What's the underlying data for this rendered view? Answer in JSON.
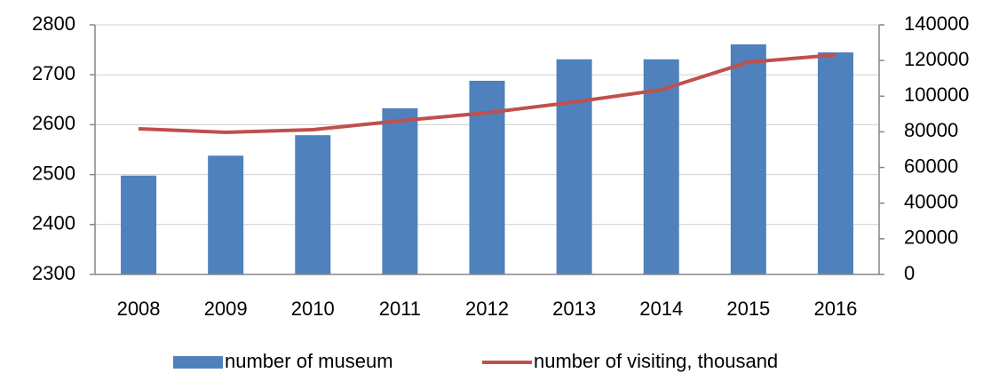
{
  "chart_data": {
    "type": "combo",
    "categories": [
      "2008",
      "2009",
      "2010",
      "2011",
      "2012",
      "2013",
      "2014",
      "2015",
      "2016"
    ],
    "series": [
      {
        "name": "number of museum",
        "type": "bar",
        "axis": "y",
        "color": "#4f81bd",
        "values": [
          2498,
          2538,
          2579,
          2633,
          2688,
          2731,
          2731,
          2761,
          2745
        ]
      },
      {
        "name": "number of visiting, thousand",
        "type": "line",
        "axis": "y2",
        "color": "#c0504d",
        "values": [
          81700,
          79700,
          81200,
          86200,
          90700,
          96700,
          103600,
          119100,
          123100
        ]
      }
    ],
    "ylim": [
      2300,
      2800
    ],
    "yticks": [
      2300,
      2400,
      2500,
      2600,
      2700,
      2800
    ],
    "y2lim": [
      0,
      140000
    ],
    "y2ticks": [
      0,
      20000,
      40000,
      60000,
      80000,
      100000,
      120000,
      140000
    ],
    "grid": true,
    "legend": "bottom"
  }
}
